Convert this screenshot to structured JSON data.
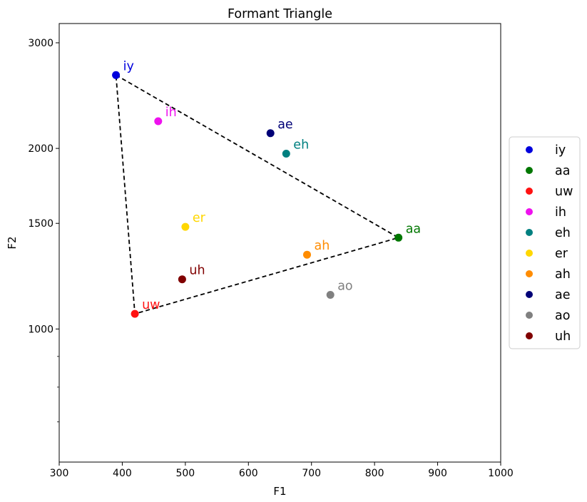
{
  "chart_data": {
    "type": "scatter",
    "title": "Formant Triangle",
    "xlabel": "F1",
    "ylabel": "F2",
    "xlim": [
      300,
      1000
    ],
    "ylim": [
      600,
      3230
    ],
    "y_scale": "log",
    "grid": false,
    "legend_position": "center right, outside plot",
    "x_ticks": [
      300,
      400,
      500,
      600,
      700,
      800,
      900,
      1000
    ],
    "y_ticks": [
      1000,
      1500,
      2000,
      3000
    ],
    "y_minor_ticks": [
      700,
      800,
      900
    ],
    "series": [
      {
        "name": "iy",
        "color": "#0000dd",
        "x": 390,
        "y": 2650
      },
      {
        "name": "aa",
        "color": "#007700",
        "x": 838,
        "y": 1420
      },
      {
        "name": "uw",
        "color": "#ff1111",
        "x": 420,
        "y": 1060
      },
      {
        "name": "ih",
        "color": "#ee11ee",
        "x": 457,
        "y": 2220
      },
      {
        "name": "eh",
        "color": "#008080",
        "x": 660,
        "y": 1960
      },
      {
        "name": "er",
        "color": "#ffd700",
        "x": 500,
        "y": 1480
      },
      {
        "name": "ah",
        "color": "#ff8c00",
        "x": 693,
        "y": 1330
      },
      {
        "name": "ae",
        "color": "#000077",
        "x": 635,
        "y": 2120
      },
      {
        "name": "ao",
        "color": "#808080",
        "x": 730,
        "y": 1140
      },
      {
        "name": "uh",
        "color": "#800000",
        "x": 495,
        "y": 1210
      }
    ],
    "triangle": {
      "style": "dashed",
      "color": "#000000",
      "vertices": [
        "iy",
        "aa",
        "uw"
      ]
    }
  }
}
